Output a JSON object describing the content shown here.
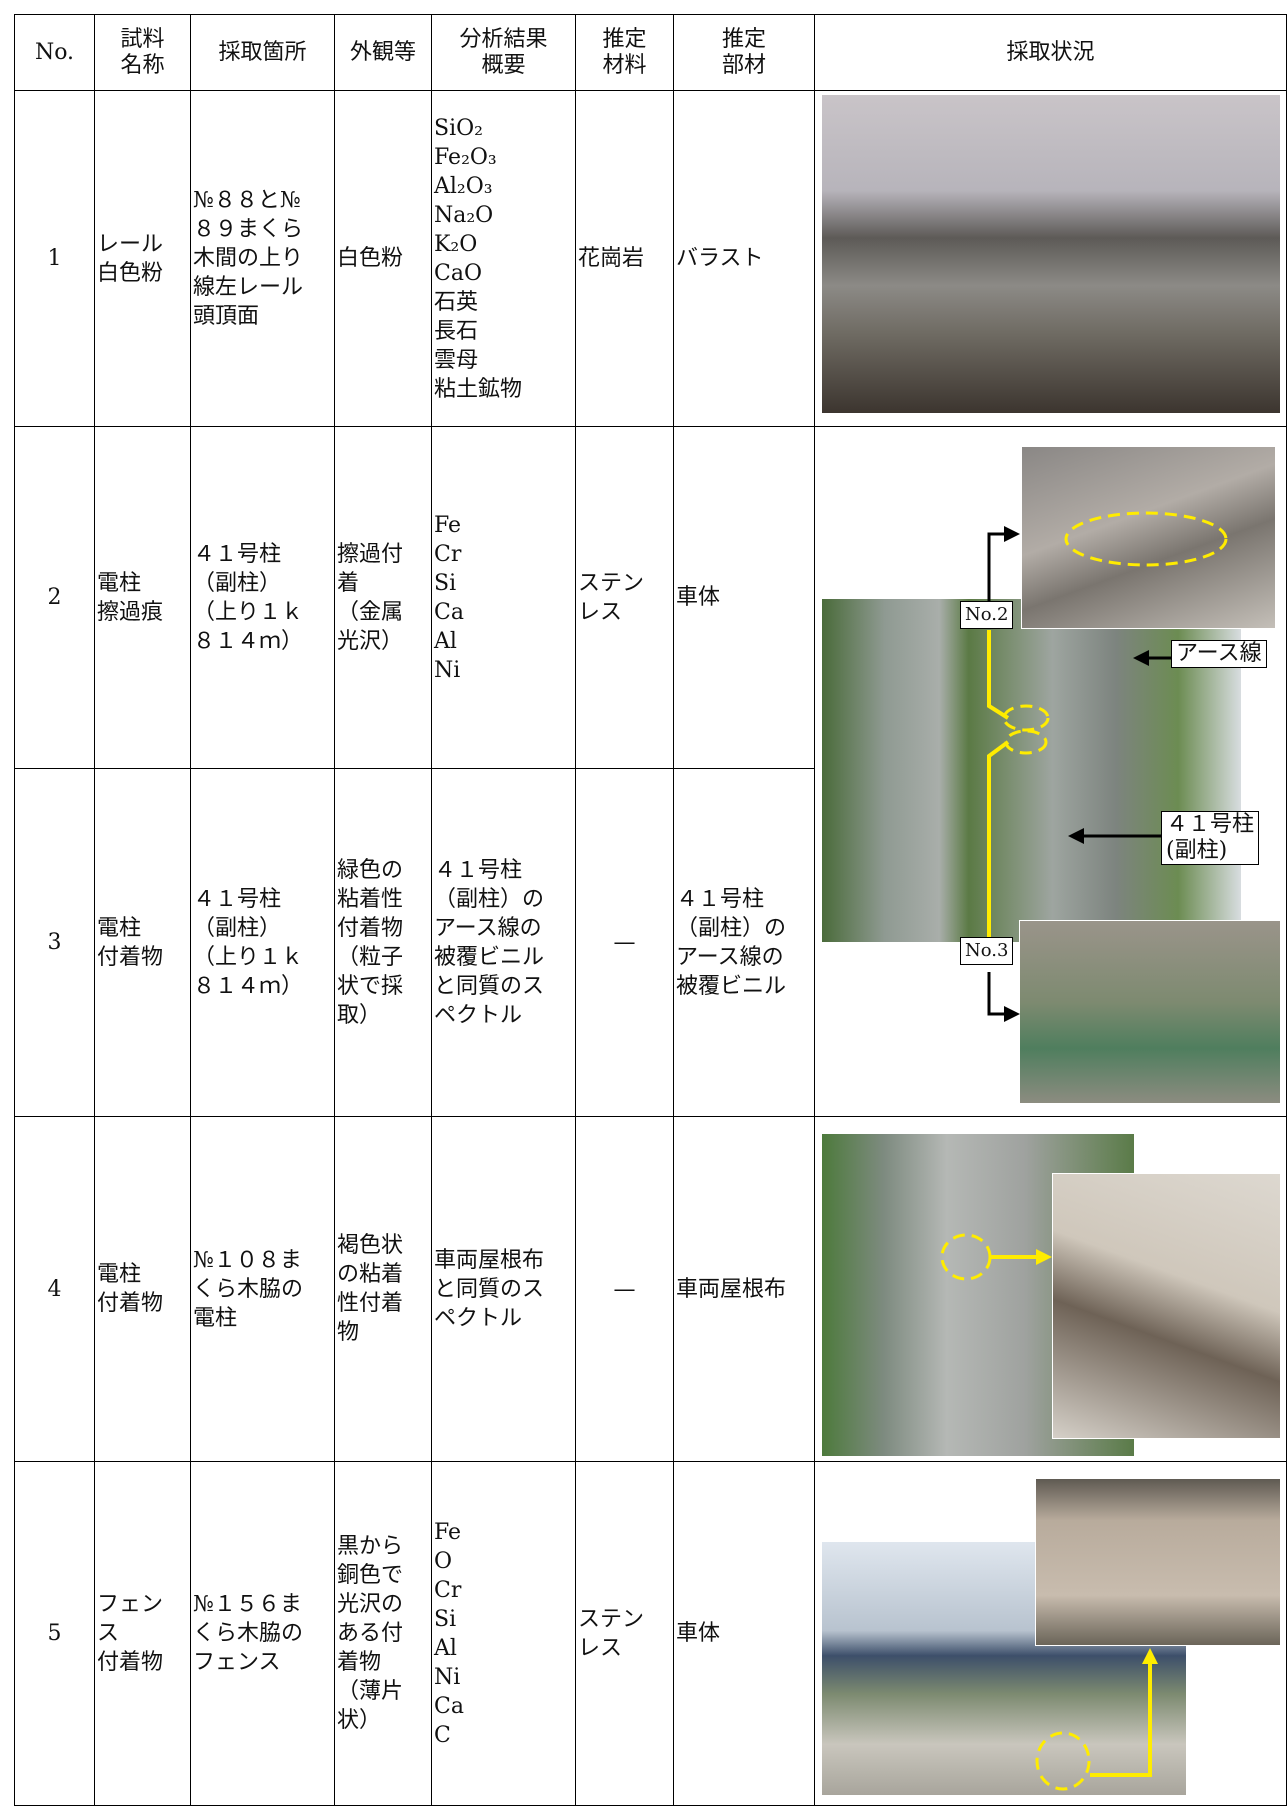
{
  "table": {
    "headers": [
      "No.",
      "試料\n名称",
      "採取箇所",
      "外観等",
      "分析結果\n概要",
      "推定\n材料",
      "推定\n部材",
      "採取状況"
    ],
    "rows": [
      {
        "no": "1",
        "name": "レール\n白色粉",
        "location": "№８８と№\n８９まくら\n木間の上り\n線左レール\n頭頂面",
        "appearance": "白色粉",
        "analysis": "SiO₂\nFe₂O₃\nAl₂O₃\nNa₂O\nK₂O\nCaO\n石英\n長石\n雲母\n粘土鉱物",
        "material": "花崗岩",
        "member": "バラスト"
      },
      {
        "no": "2",
        "name": "電柱\n擦過痕",
        "location": "４１号柱\n（副柱）\n（上り１ｋ\n８１４ｍ）",
        "appearance": "擦過付\n着\n（金属\n光沢）",
        "analysis": "Fe\nCr\nSi\nCa\nAl\nNi",
        "material": "ステン\nレス",
        "member": "車体"
      },
      {
        "no": "3",
        "name": "電柱\n付着物",
        "location": "４１号柱\n（副柱）\n（上り１ｋ\n８１４ｍ）",
        "appearance": "緑色の\n粘着性\n付着物\n（粒子\n状で採\n取）",
        "analysis": "４１号柱\n（副柱）の\nアース線の\n被覆ビニル\nと同質のス\nペクトル",
        "material": "—",
        "member": "４１号柱\n（副柱）の\nアース線の\n被覆ビニル"
      },
      {
        "no": "4",
        "name": "電柱\n付着物",
        "location": "№１０８ま\nくら木脇の\n電柱",
        "appearance": "褐色状\nの粘着\n性付着\n物",
        "analysis": "車両屋根布\nと同質のス\nペクトル",
        "material": "—",
        "member": "車両屋根布"
      },
      {
        "no": "5",
        "name": "フェン\nス\n付着物",
        "location": "№１５６ま\nくら木脇の\nフェンス",
        "appearance": "黒から\n銅色で\n光沢の\nある付\n着物\n（薄片\n状）",
        "analysis": "Fe\nO\nCr\nSi\nAl\nNi\nCa\nC",
        "material": "ステン\nレス",
        "member": "車体"
      }
    ],
    "photo_labels": {
      "no2": "No.2",
      "no3": "No.3",
      "earth_wire": "アース線",
      "pole": "４１号柱\n(副柱)"
    }
  }
}
